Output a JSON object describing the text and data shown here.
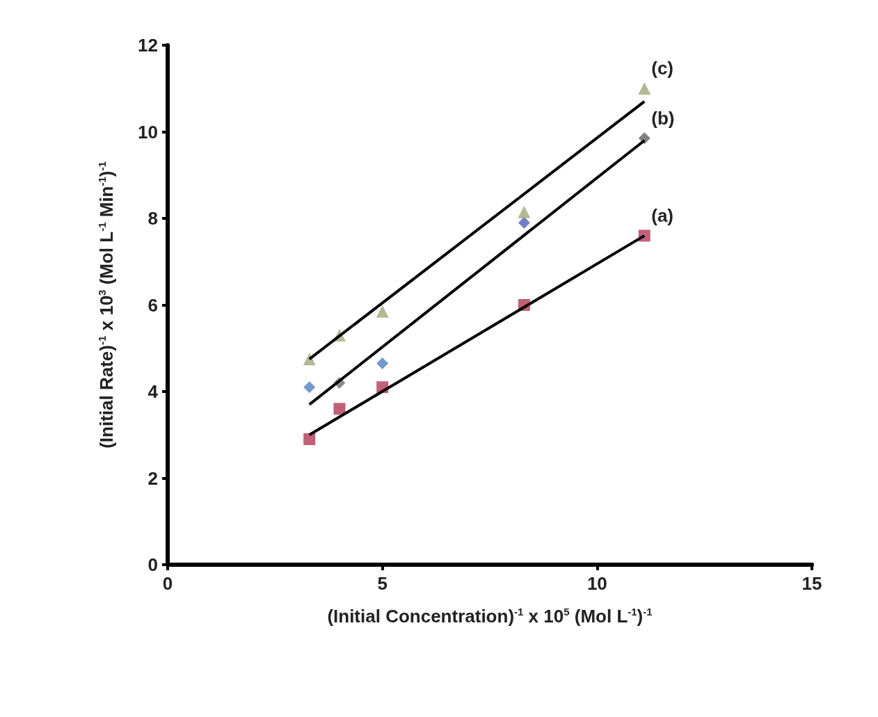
{
  "chart_data": {
    "type": "scatter",
    "xlabel": "(Initial Concentration)$^{-1}$ x 10$^{5}$ (Mol L$^{-1}$)$^{-1}$",
    "ylabel": "(Initial Rate)$^{-1}$ x 10$^{3}$ (Mol L$^{-1}$ Min$^{-1}$)$^{-1}$",
    "xlim": [
      0,
      15
    ],
    "xticks": [
      0,
      5,
      10,
      15
    ],
    "ylim": [
      0,
      12
    ],
    "yticks": [
      0,
      2,
      4,
      6,
      8,
      10,
      12
    ],
    "grid": false,
    "series": [
      {
        "marker": "square",
        "color": "#b03a55",
        "x": [
          3.3,
          4.0,
          5.0,
          8.3,
          11.1
        ],
        "values": [
          2.9,
          3.6,
          4.1,
          6.0,
          7.6
        ]
      },
      {
        "marker": "diamond",
        "color": "#4f81bd",
        "colors": [
          "#4f81bd",
          "#707070",
          "#4f81bd",
          "#4f60bd",
          "#606060"
        ],
        "x": [
          3.3,
          4.0,
          5.0,
          8.3,
          11.1
        ],
        "values": [
          4.1,
          4.2,
          4.65,
          7.9,
          9.85
        ]
      },
      {
        "marker": "triangle",
        "color": "#a3a878",
        "x": [
          3.3,
          4.0,
          5.0,
          8.3,
          11.1
        ],
        "values": [
          4.75,
          5.3,
          5.85,
          8.15,
          11.0
        ]
      },
      {
        "type": "line",
        "marker": "none",
        "color": "#000000",
        "x": [
          3.3,
          11.1
        ],
        "values": [
          3.0,
          7.6
        ]
      },
      {
        "type": "line",
        "marker": "none",
        "color": "#000000",
        "x": [
          3.3,
          11.1
        ],
        "values": [
          3.7,
          9.8
        ]
      },
      {
        "type": "line",
        "marker": "none",
        "color": "#000000",
        "x": [
          3.3,
          11.1
        ],
        "values": [
          4.75,
          10.7
        ]
      }
    ],
    "annotations": [
      "(a)",
      "(b)",
      "(c)"
    ]
  }
}
